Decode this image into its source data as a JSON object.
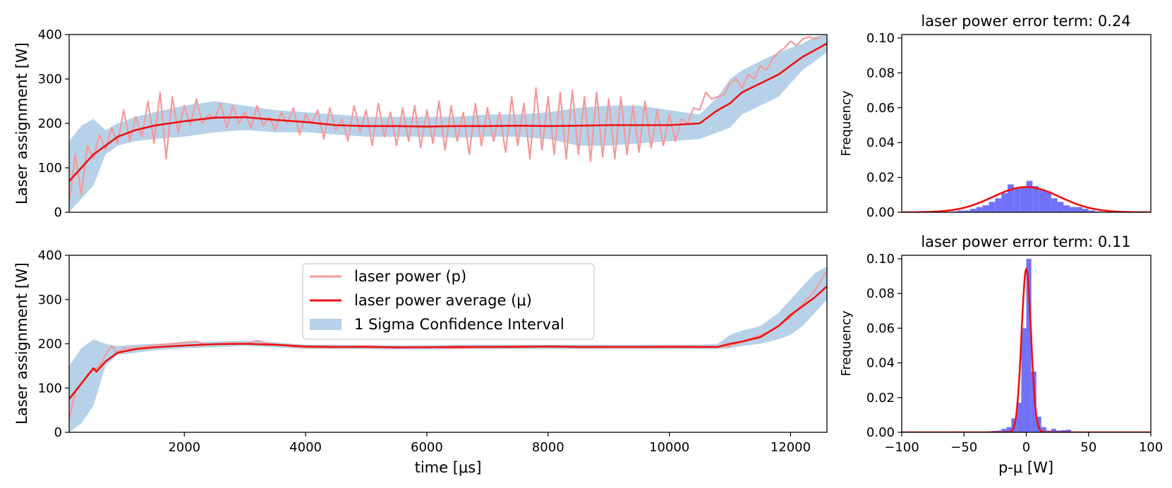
{
  "chart_data": [
    {
      "id": "ts_top",
      "type": "line",
      "title": "",
      "xlabel": "",
      "ylabel": "Laser assignment [W]",
      "xlim": [
        100,
        12600
      ],
      "ylim": [
        0,
        400
      ],
      "yticks": [
        0,
        100,
        200,
        300,
        400
      ],
      "xticks": [],
      "series": [
        {
          "name": "laser power (p)",
          "color": "#f4999b",
          "x": [
            100,
            200,
            300,
            400,
            500,
            600,
            700,
            800,
            900,
            1000,
            1100,
            1200,
            1300,
            1400,
            1500,
            1600,
            1700,
            1800,
            1900,
            2000,
            2100,
            2200,
            2300,
            2400,
            2500,
            2600,
            2700,
            2800,
            2900,
            3000,
            3100,
            3200,
            3300,
            3400,
            3500,
            3600,
            3700,
            3800,
            3900,
            4000,
            4100,
            4200,
            4300,
            4400,
            4500,
            4600,
            4700,
            4800,
            4900,
            5000,
            5100,
            5200,
            5300,
            5400,
            5500,
            5600,
            5700,
            5800,
            5900,
            6000,
            6100,
            6200,
            6300,
            6400,
            6500,
            6600,
            6700,
            6800,
            6900,
            7000,
            7100,
            7200,
            7300,
            7400,
            7500,
            7600,
            7700,
            7800,
            7900,
            8000,
            8100,
            8200,
            8300,
            8400,
            8500,
            8600,
            8700,
            8800,
            8900,
            9000,
            9100,
            9200,
            9300,
            9400,
            9500,
            9600,
            9700,
            9800,
            9900,
            10000,
            10100,
            10200,
            10300,
            10400,
            10500,
            10600,
            10700,
            10800,
            10900,
            11000,
            11100,
            11200,
            11300,
            11400,
            11500,
            11600,
            11700,
            11800,
            11900,
            12000,
            12100,
            12200,
            12300,
            12400,
            12500
          ],
          "values": [
            20,
            130,
            40,
            150,
            120,
            175,
            140,
            190,
            155,
            230,
            160,
            215,
            170,
            250,
            155,
            270,
            120,
            260,
            180,
            240,
            195,
            255,
            200,
            220,
            210,
            245,
            190,
            240,
            200,
            225,
            190,
            240,
            195,
            215,
            185,
            225,
            200,
            235,
            175,
            220,
            200,
            230,
            165,
            235,
            185,
            210,
            160,
            240,
            180,
            230,
            150,
            245,
            170,
            225,
            150,
            235,
            160,
            240,
            145,
            230,
            155,
            250,
            140,
            240,
            160,
            225,
            130,
            245,
            150,
            235,
            160,
            225,
            135,
            260,
            150,
            245,
            120,
            280,
            140,
            260,
            130,
            270,
            120,
            275,
            130,
            260,
            115,
            270,
            125,
            255,
            120,
            260,
            130,
            240,
            135,
            250,
            145,
            230,
            150,
            220,
            160,
            210,
            200,
            235,
            230,
            270,
            255,
            260,
            265,
            290,
            300,
            280,
            310,
            300,
            330,
            320,
            345,
            360,
            370,
            385,
            375,
            390,
            395,
            390,
            395
          ]
        },
        {
          "name": "laser power average (μ)",
          "color": "#ee1111",
          "x": [
            100,
            300,
            500,
            700,
            900,
            1200,
            1500,
            2000,
            2500,
            3000,
            3500,
            4000,
            4500,
            5000,
            5500,
            6000,
            6500,
            7000,
            7500,
            8000,
            8500,
            9000,
            9500,
            10000,
            10500,
            10800,
            11000,
            11200,
            11500,
            11800,
            12000,
            12200,
            12400,
            12600
          ],
          "values": [
            70,
            100,
            130,
            150,
            170,
            185,
            195,
            205,
            213,
            214,
            208,
            203,
            196,
            194,
            194,
            193,
            194,
            194,
            195,
            194,
            195,
            196,
            196,
            196,
            200,
            230,
            245,
            270,
            290,
            310,
            330,
            350,
            365,
            380
          ]
        }
      ],
      "band": {
        "name": "1 Sigma Confidence Interval",
        "color": "#b7d2e8",
        "x": [
          100,
          300,
          500,
          700,
          900,
          1200,
          1500,
          2000,
          2500,
          3000,
          3500,
          4000,
          4500,
          5000,
          5500,
          6000,
          6500,
          7000,
          7500,
          8000,
          8500,
          9000,
          9500,
          10000,
          10500,
          10800,
          11000,
          11200,
          11500,
          11800,
          12000,
          12200,
          12400,
          12600
        ],
        "lower": [
          0,
          30,
          60,
          130,
          150,
          160,
          165,
          170,
          180,
          185,
          180,
          180,
          175,
          170,
          170,
          170,
          168,
          170,
          170,
          165,
          150,
          150,
          155,
          160,
          165,
          180,
          190,
          220,
          240,
          260,
          290,
          320,
          340,
          360
        ],
        "upper": [
          160,
          195,
          210,
          185,
          200,
          215,
          225,
          240,
          250,
          240,
          230,
          225,
          220,
          215,
          215,
          215,
          215,
          220,
          220,
          225,
          235,
          240,
          240,
          230,
          220,
          260,
          300,
          320,
          340,
          360,
          370,
          380,
          395,
          400
        ]
      }
    },
    {
      "id": "hist_top",
      "type": "bar",
      "title": "laser power error term: 0.24",
      "xlabel": "",
      "ylabel": "Frequency",
      "xlim": [
        -100,
        100
      ],
      "ylim": [
        0,
        0.102
      ],
      "yticks": [
        0.0,
        0.02,
        0.04,
        0.06,
        0.08,
        0.1
      ],
      "ytick_labels": [
        "0.00",
        "0.02",
        "0.04",
        "0.06",
        "0.08",
        "0.10"
      ],
      "xticks": [],
      "bin_edges": [
        -60,
        -55,
        -50,
        -45,
        -40,
        -35,
        -30,
        -25,
        -20,
        -15,
        -10,
        -5,
        0,
        5,
        10,
        15,
        20,
        25,
        30,
        35,
        40,
        45,
        50,
        55,
        60
      ],
      "values": [
        0.0005,
        0.001,
        0.001,
        0.002,
        0.003,
        0.004,
        0.006,
        0.008,
        0.011,
        0.016,
        0.014,
        0.014,
        0.018,
        0.015,
        0.013,
        0.012,
        0.008,
        0.006,
        0.004,
        0.003,
        0.003,
        0.002,
        0.001,
        0.0005
      ],
      "bar_color": "#4f4ff7",
      "fit": {
        "color": "#ee1111",
        "type": "normal",
        "mean": 0,
        "std": 27,
        "peak": 0.0145
      }
    },
    {
      "id": "ts_bottom",
      "type": "line",
      "title": "",
      "xlabel": "time [μs]",
      "ylabel": "Laser assignment [W]",
      "xlim": [
        100,
        12600
      ],
      "ylim": [
        0,
        400
      ],
      "yticks": [
        0,
        100,
        200,
        300,
        400
      ],
      "xticks": [
        2000,
        4000,
        6000,
        8000,
        10000,
        12000
      ],
      "series": [
        {
          "name": "laser power (p)",
          "color": "#f4999b",
          "x": [
            100,
            200,
            300,
            400,
            500,
            600,
            700,
            800,
            900,
            1000,
            1200,
            1400,
            1600,
            1800,
            2000,
            2200,
            2400,
            2600,
            2800,
            3000,
            3200,
            3400,
            3600,
            3800,
            4000,
            4500,
            5000,
            5500,
            6000,
            6500,
            7000,
            7500,
            8000,
            8500,
            9000,
            9500,
            10000,
            10500,
            10800,
            11000,
            11200,
            11400,
            11600,
            11800,
            12000,
            12200,
            12400,
            12600
          ],
          "values": [
            30,
            90,
            110,
            130,
            140,
            150,
            175,
            195,
            180,
            190,
            190,
            195,
            198,
            200,
            203,
            205,
            198,
            200,
            202,
            200,
            207,
            200,
            198,
            193,
            192,
            192,
            195,
            191,
            193,
            190,
            193,
            195,
            194,
            192,
            193,
            193,
            195,
            194,
            193,
            195,
            205,
            215,
            225,
            240,
            260,
            290,
            320,
            365
          ]
        },
        {
          "name": "laser power average (μ)",
          "color": "#ee1111",
          "x": [
            100,
            300,
            500,
            550,
            700,
            900,
            1200,
            1500,
            2000,
            2500,
            3000,
            3500,
            4000,
            4500,
            5000,
            5500,
            6000,
            6500,
            7000,
            7500,
            8000,
            8500,
            9000,
            9500,
            10000,
            10500,
            10800,
            11000,
            11200,
            11500,
            11800,
            12000,
            12200,
            12400,
            12600
          ],
          "values": [
            75,
            110,
            145,
            137,
            160,
            180,
            188,
            192,
            196,
            199,
            200,
            198,
            194,
            193,
            193,
            192,
            192,
            193,
            193,
            193,
            194,
            193,
            193,
            193,
            193,
            193,
            193,
            200,
            205,
            215,
            240,
            265,
            285,
            305,
            330
          ]
        }
      ],
      "band": {
        "name": "1 Sigma Confidence Interval",
        "color": "#b7d2e8",
        "x": [
          100,
          300,
          500,
          700,
          900,
          1200,
          1500,
          2000,
          2500,
          3000,
          3500,
          4000,
          4500,
          5000,
          5500,
          6000,
          6500,
          7000,
          7500,
          8000,
          8500,
          9000,
          9500,
          10000,
          10500,
          10800,
          11000,
          11200,
          11500,
          11800,
          12000,
          12200,
          12400,
          12600
        ],
        "lower": [
          0,
          20,
          60,
          150,
          175,
          180,
          185,
          190,
          192,
          195,
          192,
          188,
          188,
          188,
          187,
          187,
          188,
          188,
          188,
          188,
          188,
          188,
          188,
          188,
          188,
          188,
          190,
          195,
          200,
          210,
          220,
          240,
          270,
          300
        ],
        "upper": [
          150,
          190,
          210,
          200,
          195,
          198,
          200,
          202,
          205,
          207,
          203,
          198,
          198,
          197,
          197,
          197,
          198,
          198,
          198,
          198,
          198,
          198,
          198,
          198,
          198,
          200,
          220,
          230,
          240,
          270,
          300,
          330,
          360,
          375
        ]
      },
      "legend": {
        "placement": "upper-center",
        "entries": [
          "laser power (p)",
          "laser power average (μ)",
          "1 Sigma Confidence Interval"
        ]
      }
    },
    {
      "id": "hist_bottom",
      "type": "bar",
      "title": "laser power error term: 0.11",
      "xlabel": "p-μ [W]",
      "ylabel": "Frequency",
      "xlim": [
        -100,
        100
      ],
      "ylim": [
        0,
        0.102
      ],
      "yticks": [
        0.0,
        0.02,
        0.04,
        0.06,
        0.08,
        0.1
      ],
      "ytick_labels": [
        "0.00",
        "0.02",
        "0.04",
        "0.06",
        "0.08",
        "0.10"
      ],
      "xticks": [
        -100,
        -50,
        0,
        50,
        100
      ],
      "xtick_labels": [
        "−100",
        "−50",
        "0",
        "50",
        "100"
      ],
      "bin_edges": [
        -56,
        -52,
        -48,
        -44,
        -40,
        -36,
        -32,
        -28,
        -24,
        -20,
        -16,
        -12,
        -8,
        -4,
        0,
        4,
        8,
        12,
        16,
        20,
        24,
        28,
        32,
        36
      ],
      "values": [
        0.0005,
        0.0002,
        0.0002,
        0.0002,
        0.0003,
        0.0004,
        0.0005,
        0.0008,
        0.001,
        0.002,
        0.003,
        0.008,
        0.017,
        0.06,
        0.1,
        0.035,
        0.009,
        0.003,
        0.001,
        0.002,
        0.001,
        0.0012,
        0.0015
      ],
      "bar_color": "#4f4ff7",
      "fit": {
        "color": "#ee1111",
        "type": "normal",
        "mean": 0,
        "std": 3.8,
        "peak": 0.094
      }
    }
  ]
}
